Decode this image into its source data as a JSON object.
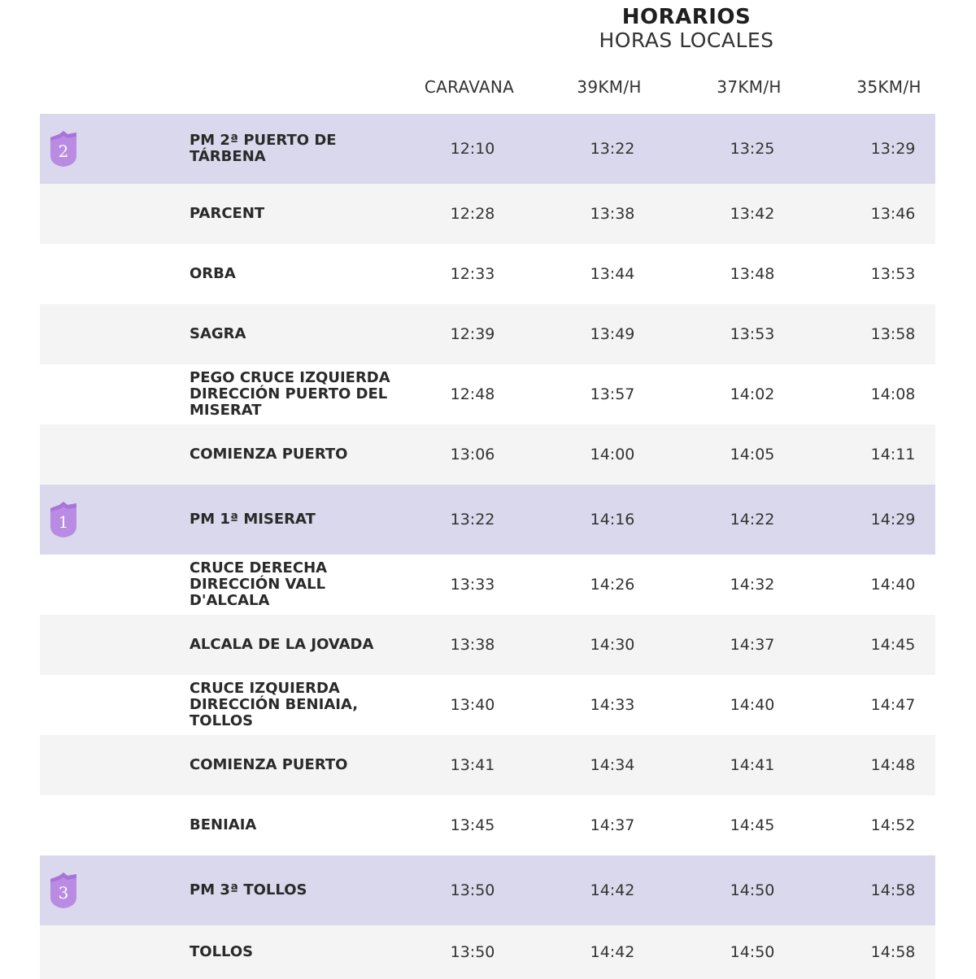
{
  "header": {
    "title": "HORARIOS",
    "subtitle": "HORAS LOCALES"
  },
  "columns": [
    "CARAVANA",
    "39KM/H",
    "37KM/H",
    "35KM/H"
  ],
  "rows": [
    {
      "place": "PM 2ª PUERTO DE\nTÁRBENA",
      "climb": "2",
      "times": [
        "12:10",
        "13:22",
        "13:25",
        "13:29"
      ]
    },
    {
      "place": "PARCENT",
      "climb": "",
      "times": [
        "12:28",
        "13:38",
        "13:42",
        "13:46"
      ]
    },
    {
      "place": "ORBA",
      "climb": "",
      "times": [
        "12:33",
        "13:44",
        "13:48",
        "13:53"
      ]
    },
    {
      "place": "SAGRA",
      "climb": "",
      "times": [
        "12:39",
        "13:49",
        "13:53",
        "13:58"
      ]
    },
    {
      "place": "PEGO CRUCE IZQUIERDA\nDIRECCIÓN PUERTO DEL\nMISERAT",
      "climb": "",
      "times": [
        "12:48",
        "13:57",
        "14:02",
        "14:08"
      ]
    },
    {
      "place": "COMIENZA PUERTO",
      "climb": "",
      "times": [
        "13:06",
        "14:00",
        "14:05",
        "14:11"
      ]
    },
    {
      "place": "PM 1ª MISERAT",
      "climb": "1",
      "times": [
        "13:22",
        "14:16",
        "14:22",
        "14:29"
      ]
    },
    {
      "place": "CRUCE DERECHA\nDIRECCIÓN VALL\nD'ALCALA",
      "climb": "",
      "times": [
        "13:33",
        "14:26",
        "14:32",
        "14:40"
      ]
    },
    {
      "place": "ALCALA DE LA JOVADA",
      "climb": "",
      "times": [
        "13:38",
        "14:30",
        "14:37",
        "14:45"
      ]
    },
    {
      "place": "CRUCE IZQUIERDA\nDIRECCIÓN BENIAIA,\nTOLLOS",
      "climb": "",
      "times": [
        "13:40",
        "14:33",
        "14:40",
        "14:47"
      ]
    },
    {
      "place": "COMIENZA PUERTO",
      "climb": "",
      "times": [
        "13:41",
        "14:34",
        "14:41",
        "14:48"
      ]
    },
    {
      "place": "BENIAIA",
      "climb": "",
      "times": [
        "13:45",
        "14:37",
        "14:45",
        "14:52"
      ]
    },
    {
      "place": "PM 3ª TOLLOS",
      "climb": "3",
      "times": [
        "13:50",
        "14:42",
        "14:50",
        "14:58"
      ]
    },
    {
      "place": "TOLLOS",
      "climb": "",
      "times": [
        "13:50",
        "14:42",
        "14:50",
        "14:58"
      ]
    }
  ],
  "colors": {
    "climb_row": "#d9d8ec",
    "badge": "#b98be3",
    "stripe": "#f4f4f4"
  },
  "icons": {
    "climb_badge": "mountain-category-badge-icon"
  }
}
